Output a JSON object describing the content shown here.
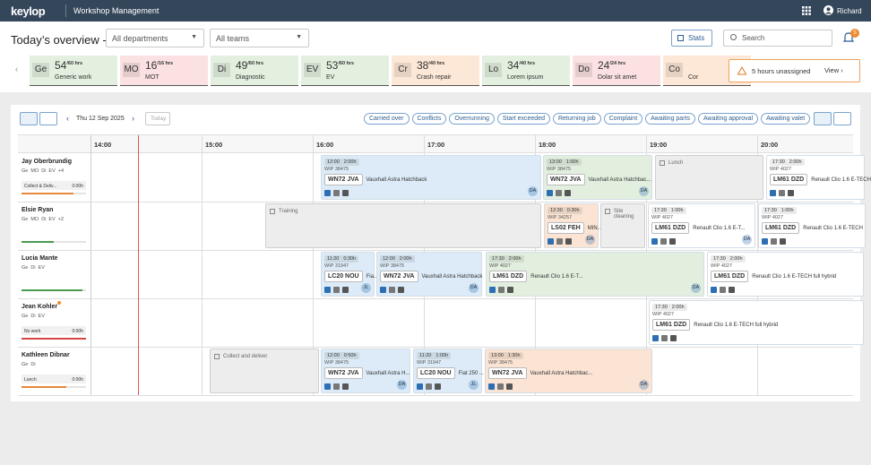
{
  "header": {
    "logo": "keylop",
    "app": "Workshop Management",
    "user": "Richard"
  },
  "overview": {
    "title": "Today’s overview -",
    "departments": "All departments",
    "teams": "All teams",
    "stats": "Stats",
    "search": "Search",
    "notifications": "5"
  },
  "cards": [
    {
      "abbr": "Ge",
      "value": "54",
      "unit": "/60 hrs",
      "name": "Generic work",
      "color": "#e3f0e0"
    },
    {
      "abbr": "MO",
      "value": "16",
      "unit": "/16 hrs",
      "name": "MOT",
      "color": "#fbe1e1"
    },
    {
      "abbr": "Di",
      "value": "49",
      "unit": "/60 hrs",
      "name": "Diagnostic",
      "color": "#e3f0e0"
    },
    {
      "abbr": "EV",
      "value": "53",
      "unit": "/60 hrs",
      "name": "EV",
      "color": "#e3f0e0"
    },
    {
      "abbr": "Cr",
      "value": "38",
      "unit": "/40 hrs",
      "name": "Crash repair",
      "color": "#fde7d6"
    },
    {
      "abbr": "Lo",
      "value": "34",
      "unit": "/40 hrs",
      "name": "Lorem ipsum",
      "color": "#e3f0e0"
    },
    {
      "abbr": "Do",
      "value": "24",
      "unit": "/24 hrs",
      "name": "Dolar sit amet",
      "color": "#fbe1e1"
    },
    {
      "abbr": "Co",
      "name": "Cor",
      "color": "#fde7d6"
    }
  ],
  "alert": {
    "text": "5 hours unassigned",
    "action": "View"
  },
  "toolbar": {
    "date": "Thu 12 Sep 2025",
    "today": "Today",
    "filters": [
      "Carried over",
      "Conflicts",
      "Overrunning",
      "Start exceeded",
      "Returning job",
      "Complaint",
      "Awaiting parts",
      "Awaiting approval",
      "Awaiting valet"
    ]
  },
  "times": [
    "14:00",
    "15:00",
    "16:00",
    "17:00",
    "18:00",
    "19:00",
    "20:00"
  ],
  "technicians": [
    {
      "name": "Jay Oberbrundig",
      "skills": [
        "Ge",
        "MO",
        "Di",
        "EV"
      ],
      "more": "+4",
      "status": "Collect & Deliv...",
      "hours": "0:00h",
      "progress": 80,
      "color": "#e8883a",
      "jobs": [
        {
          "start": "12:00",
          "duration": "2:00h",
          "wip": "WIP 38475",
          "reg": "WN72 JVA",
          "model": "Vauxhall Astra Hatchback",
          "tech": "DA",
          "color": "#dcebf7"
        },
        {
          "start": "13:00",
          "duration": "1:00h",
          "wip": "WIP 38475",
          "reg": "WN72 JVA",
          "model": "Vauxhall Astra Hatchbac...",
          "tech": "DA",
          "color": "#e2efdf"
        },
        {
          "label": "Lunch",
          "color": "#ededed"
        },
        {
          "start": "17:30",
          "duration": "2:00h",
          "wip": "WIP 4027",
          "reg": "LM61 DZD",
          "model": "Renault Clio 1.6 E-TECH",
          "color": "#ffffff"
        }
      ]
    },
    {
      "name": "Elsie Ryan",
      "skills": [
        "Ge",
        "MO",
        "Di",
        "EV"
      ],
      "more": "+2",
      "progress": 50,
      "color": "#4a9a52",
      "jobs": [
        {
          "label": "Training",
          "color": "#ededed"
        },
        {
          "start": "12:30",
          "duration": "0:30h",
          "wip": "WIP 34257",
          "reg": "LS02 FEH",
          "model": "MIN...",
          "tech": "DA",
          "color": "#fbe4d3"
        },
        {
          "label": "Site cleaning",
          "color": "#ededed"
        },
        {
          "start": "17:30",
          "duration": "1:00h",
          "wip": "WIP 4027",
          "reg": "LM61 DZD",
          "model": "Renault Clio 1.6 E-T...",
          "tech": "DA",
          "color": "#ffffff"
        },
        {
          "start": "17:30",
          "duration": "1:00h",
          "wip": "WIP 4027",
          "reg": "LM61 DZD",
          "model": "Renault Clio 1.6 E-TECH",
          "color": "#ffffff"
        }
      ]
    },
    {
      "name": "Lucia Mante",
      "skills": [
        "Ge",
        "Di",
        "EV"
      ],
      "progress": 95,
      "color": "#4a9a52",
      "jobs": [
        {
          "start": "11:20",
          "duration": "0:30h",
          "wip": "WIP 31947",
          "reg": "LC20 NOU",
          "model": "Fia...",
          "tech": "JL",
          "color": "#dcebf7"
        },
        {
          "start": "12:00",
          "duration": "2:00h",
          "wip": "WIP 38475",
          "reg": "WN72 JVA",
          "model": "Vauxhall Astra Hatchback",
          "tech": "DA",
          "color": "#dcebf7"
        },
        {
          "start": "17:30",
          "duration": "2:00h",
          "wip": "WIP 4027",
          "reg": "LM61 DZD",
          "model": "Renault Clio 1.6 E-T...",
          "tech": "DA",
          "color": "#e2efdf"
        },
        {
          "start": "17:30",
          "duration": "2:00h",
          "wip": "WIP 4027",
          "reg": "LM61 DZD",
          "model": "Renault Clio 1.6 E-TECH full hybrid",
          "color": "#ffffff"
        }
      ]
    },
    {
      "name": "Jean Kohler",
      "skills": [
        "Ge",
        "Di",
        "EV"
      ],
      "status": "No work",
      "hours": "0:00h",
      "progress": 100,
      "color": "#d64545",
      "jobs": [
        {
          "start": "17:30",
          "duration": "2:00h",
          "wip": "WIP 4027",
          "reg": "LM61 DZD",
          "model": "Renault Clio 1.6 E-TECH full hybrid",
          "color": "#ffffff"
        }
      ]
    },
    {
      "name": "Kathleen Dibnar",
      "skills": [
        "Ge",
        "Di"
      ],
      "status": "Lunch",
      "hours": "0:00h",
      "progress": 70,
      "color": "#e8883a",
      "jobs": [
        {
          "label": "Collect and deliver",
          "color": "#ededed"
        },
        {
          "start": "12:00",
          "duration": "0:50h",
          "wip": "WIP 38475",
          "reg": "WN72 JVA",
          "model": "Vauxhall Astra H...",
          "tech": "DA",
          "color": "#dcebf7"
        },
        {
          "start": "11:20",
          "duration": "1:00h",
          "wip": "WIP 31947",
          "reg": "LC20 NOU",
          "model": "Fiat 250 ...",
          "tech": "JL",
          "color": "#dcebf7"
        },
        {
          "start": "13:00",
          "duration": "1:30h",
          "wip": "WIP 38475",
          "reg": "WN72 JVA",
          "model": "Vauxhall Astra Hatchbac...",
          "tech": "DA",
          "color": "#fbe4d3"
        }
      ]
    }
  ]
}
